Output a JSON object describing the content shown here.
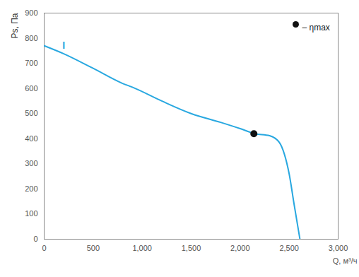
{
  "chart_data": {
    "type": "line",
    "x_label": "Q, м³/ч",
    "y_label": "Ps, Па",
    "x": [
      0,
      200,
      500,
      800,
      900,
      1200,
      1500,
      1800,
      2000,
      2150,
      2300,
      2400,
      2450,
      2500,
      2550,
      2610
    ],
    "values": [
      770,
      738,
      680,
      620,
      605,
      550,
      500,
      465,
      440,
      420,
      412,
      385,
      340,
      260,
      140,
      0
    ],
    "color": "#29a8e0",
    "xlim": [
      0,
      3000
    ],
    "xticks": [
      0,
      500,
      1000,
      1500,
      2000,
      2500,
      3000
    ],
    "ylim": [
      0,
      900
    ],
    "yticks": [
      0,
      100,
      200,
      300,
      400,
      500,
      600,
      700,
      800,
      900
    ],
    "grid": false,
    "legend": "top-right",
    "points": [
      {
        "name": "– ηmax",
        "x": 2140,
        "y": 420,
        "color": "#111111",
        "marker": "circle"
      }
    ],
    "annotations": [
      {
        "text": "I",
        "x": 200,
        "y": 770
      }
    ]
  }
}
